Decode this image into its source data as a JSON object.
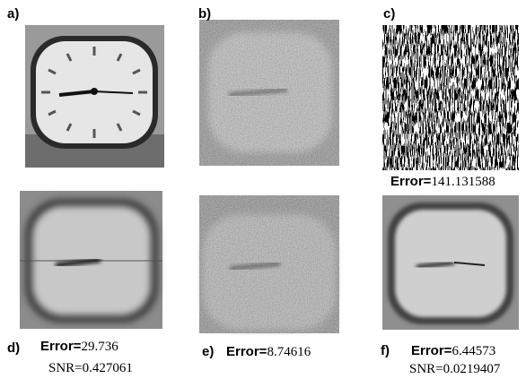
{
  "panels": [
    {
      "label": "a)"
    },
    {
      "label": "b)"
    },
    {
      "label": "c)",
      "error_label": "Error=",
      "error": "141.131588"
    },
    {
      "label": "d)",
      "error_label": "Error=",
      "error": "29.736",
      "snr": "SNR=0.427061"
    },
    {
      "label": "e)",
      "error_label": "Error=",
      "error": "8.74616"
    },
    {
      "label": "f)",
      "error_label": "Error=",
      "error": "6.44573",
      "snr": "SNR=0.0219407"
    }
  ]
}
